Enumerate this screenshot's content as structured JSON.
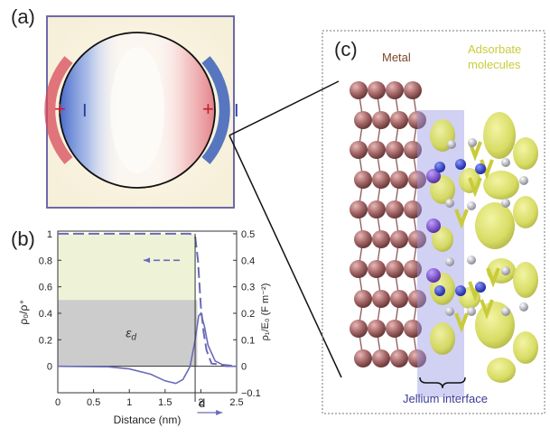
{
  "panels": {
    "a": {
      "label": "(a)",
      "plus_left": "+",
      "minus_left": "I",
      "plus_right": "+",
      "minus_right": "I"
    },
    "b": {
      "label": "(b)"
    },
    "c": {
      "label": "(c)",
      "metal_label": "Metal",
      "adsorbate_label_line1": "Adsorbate",
      "adsorbate_label_line2": "molecules",
      "jellium_label": "Jellium interface"
    }
  },
  "colors": {
    "frame": "#6b6aa8",
    "metal_label": "#7a4a2a",
    "adsorbate_label": "#c9cc3a",
    "jellium_label": "#3a3a9a",
    "metal_atom": "#a86a6a",
    "adsorbate_lobe": "#d8dc5a",
    "nitrogen": "#3a48c8",
    "carbon": "#b8b8c8",
    "jellium_slab": "#9a9ae6",
    "fill_green": "#eef3d8",
    "fill_gray": "#cccccc",
    "curve": "#6a6ab8"
  },
  "chart_data": {
    "type": "line",
    "xlabel": "Distance (nm)",
    "ylabel_left": "ρ₀/ρ⁺",
    "ylabel_right": "ρ₁/E₀ (F m⁻²)",
    "xlim": [
      0,
      2.5
    ],
    "ylim_left": [
      -0.2,
      1.02
    ],
    "ylim_right": [
      -0.1,
      0.51
    ],
    "x_ticks": [
      "0",
      "0.5",
      "1",
      "1.5",
      "2",
      "2.5"
    ],
    "y_ticks_left": [
      "0",
      "0.2",
      "0.4",
      "0.6",
      "0.8",
      "1"
    ],
    "y_ticks_right": [
      "−0.1",
      "0",
      "0.1",
      "0.2",
      "0.3",
      "0.4",
      "0.5"
    ],
    "eps_label": "ε",
    "eps_sub": "d",
    "d_label": "d",
    "series": [
      {
        "axis": "left",
        "style": "dashed",
        "x": [
          0,
          1.85,
          1.92,
          1.96,
          2.0,
          2.04,
          2.08,
          2.15,
          2.5
        ],
        "y": [
          1.0,
          1.0,
          0.98,
          0.8,
          0.45,
          0.25,
          0.12,
          0.02,
          0.0
        ]
      },
      {
        "axis": "right",
        "style": "solid",
        "x": [
          0,
          0.7,
          1.0,
          1.3,
          1.5,
          1.65,
          1.75,
          1.85,
          1.92,
          1.97,
          2.0,
          2.05,
          2.1,
          2.2,
          2.35,
          2.5
        ],
        "y": [
          0,
          -0.002,
          -0.01,
          -0.03,
          -0.055,
          -0.065,
          -0.05,
          0.0,
          0.1,
          0.19,
          0.2,
          0.15,
          0.08,
          0.02,
          0.0,
          0.0
        ]
      }
    ]
  }
}
